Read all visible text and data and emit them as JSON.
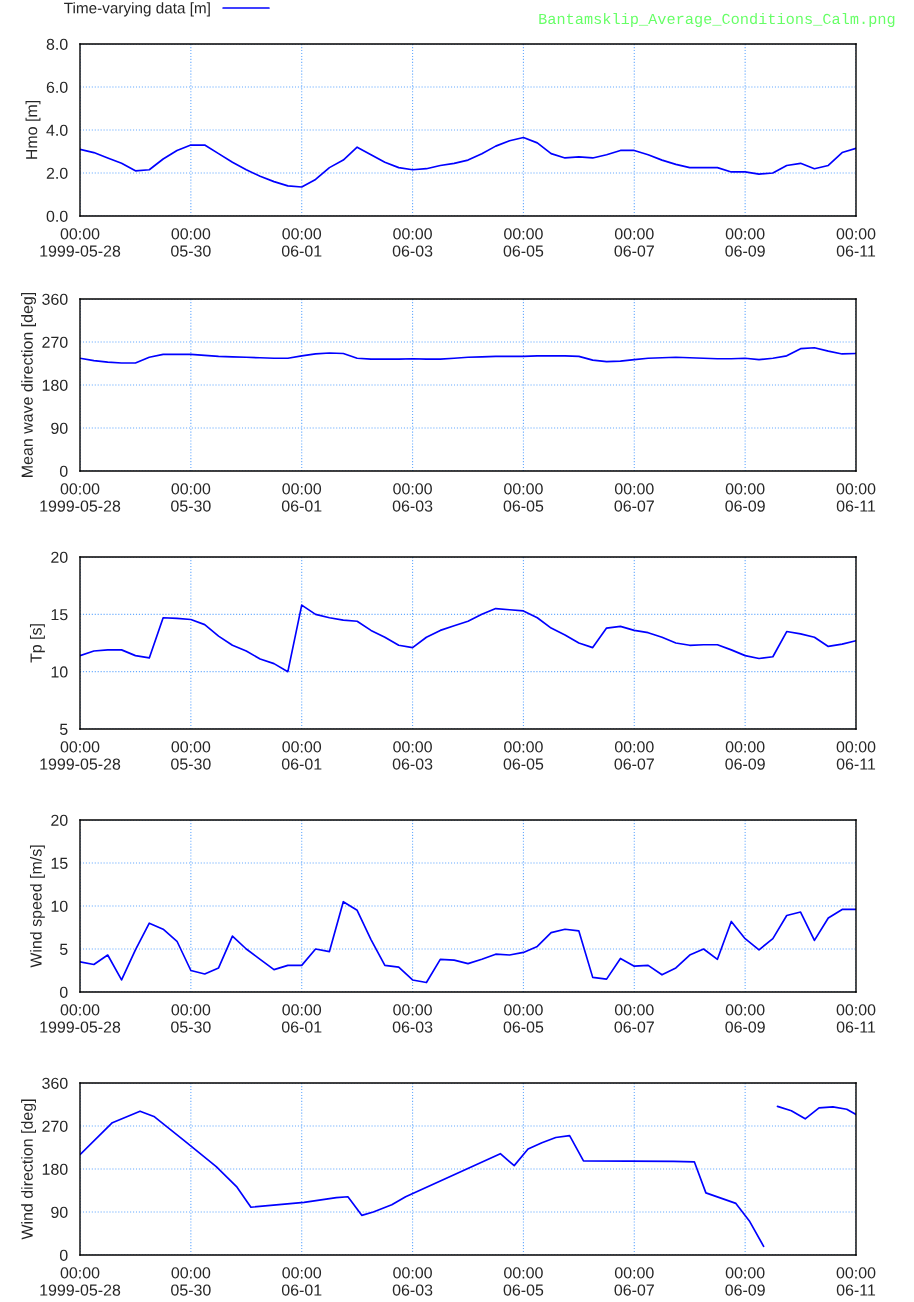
{
  "chart_data": [
    {
      "type": "line",
      "ylabel": "Hmo [m]",
      "annotations": [
        "Bantamsklip_Average_Conditions_Calm.png"
      ],
      "legend": "top left",
      "grid": true,
      "x": [
        "1999-05-28T00:00",
        "1999-05-28T06:00",
        "1999-05-28T12:00",
        "1999-05-28T18:00",
        "1999-05-29T00:00",
        "1999-05-29T06:00",
        "1999-05-29T12:00",
        "1999-05-29T18:00",
        "1999-05-30T00:00",
        "1999-05-30T06:00",
        "1999-05-30T12:00",
        "1999-05-30T18:00",
        "1999-05-31T00:00",
        "1999-05-31T06:00",
        "1999-05-31T12:00",
        "1999-05-31T18:00",
        "1999-06-01T00:00",
        "1999-06-01T06:00",
        "1999-06-01T12:00",
        "1999-06-01T18:00",
        "1999-06-02T00:00",
        "1999-06-02T06:00",
        "1999-06-02T12:00",
        "1999-06-02T18:00",
        "1999-06-03T00:00",
        "1999-06-03T06:00",
        "1999-06-03T12:00",
        "1999-06-03T18:00",
        "1999-06-04T00:00",
        "1999-06-04T06:00",
        "1999-06-04T12:00",
        "1999-06-04T18:00",
        "1999-06-05T00:00",
        "1999-06-05T06:00",
        "1999-06-05T12:00",
        "1999-06-05T18:00",
        "1999-06-06T00:00",
        "1999-06-06T06:00",
        "1999-06-06T12:00",
        "1999-06-06T18:00",
        "1999-06-07T00:00",
        "1999-06-07T06:00",
        "1999-06-07T12:00",
        "1999-06-07T18:00",
        "1999-06-08T00:00",
        "1999-06-08T06:00",
        "1999-06-08T12:00",
        "1999-06-08T18:00",
        "1999-06-09T00:00",
        "1999-06-09T06:00",
        "1999-06-09T12:00",
        "1999-06-09T18:00",
        "1999-06-10T00:00",
        "1999-06-10T06:00",
        "1999-06-10T12:00",
        "1999-06-10T18:00",
        "1999-06-11T00:00"
      ],
      "series": [
        {
          "name": "Time-varying data [m]",
          "color": "#0000ff",
          "values": [
            3.1,
            2.95,
            2.7,
            2.45,
            2.1,
            2.15,
            2.65,
            3.05,
            3.3,
            3.3,
            2.9,
            2.5,
            2.15,
            1.85,
            1.6,
            1.4,
            1.35,
            1.7,
            2.25,
            2.6,
            3.2,
            2.85,
            2.5,
            2.25,
            2.15,
            2.2,
            2.35,
            2.45,
            2.6,
            2.9,
            3.25,
            3.5,
            3.65,
            3.4,
            2.9,
            2.7,
            2.75,
            2.7,
            2.85,
            3.05,
            3.05,
            2.85,
            2.6,
            2.4,
            2.25,
            2.25,
            2.25,
            2.05,
            2.05,
            1.95,
            2.0,
            2.35,
            2.45,
            2.2,
            2.35,
            2.95,
            3.15
          ]
        }
      ],
      "xlim": [
        "1999-05-28",
        "1999-06-11"
      ],
      "xticks": [
        {
          "value": "1999-05-28",
          "label": "00:00\n1999-05-28"
        },
        {
          "value": "1999-05-30",
          "label": "00:00\n05-30"
        },
        {
          "value": "1999-06-01",
          "label": "00:00\n06-01"
        },
        {
          "value": "1999-06-03",
          "label": "00:00\n06-03"
        },
        {
          "value": "1999-06-05",
          "label": "00:00\n06-05"
        },
        {
          "value": "1999-06-07",
          "label": "00:00\n06-07"
        },
        {
          "value": "1999-06-09",
          "label": "00:00\n06-09"
        },
        {
          "value": "1999-06-11",
          "label": "00:00\n06-11"
        }
      ],
      "ylim": [
        0,
        8
      ],
      "yticks": [
        {
          "value": 0,
          "label": "0.0"
        },
        {
          "value": 2,
          "label": "2.0"
        },
        {
          "value": 4,
          "label": "4.0"
        },
        {
          "value": 6,
          "label": "6.0"
        },
        {
          "value": 8,
          "label": "8.0"
        }
      ]
    },
    {
      "type": "line",
      "ylabel": "Mean wave direction [deg]",
      "grid": true,
      "x": [
        "1999-05-28T00:00",
        "1999-05-28T06:00",
        "1999-05-28T12:00",
        "1999-05-28T18:00",
        "1999-05-29T00:00",
        "1999-05-29T06:00",
        "1999-05-29T12:00",
        "1999-05-29T18:00",
        "1999-05-30T00:00",
        "1999-05-30T06:00",
        "1999-05-30T12:00",
        "1999-05-30T18:00",
        "1999-05-31T00:00",
        "1999-05-31T06:00",
        "1999-05-31T12:00",
        "1999-05-31T18:00",
        "1999-06-01T00:00",
        "1999-06-01T06:00",
        "1999-06-01T12:00",
        "1999-06-01T18:00",
        "1999-06-02T00:00",
        "1999-06-02T06:00",
        "1999-06-02T12:00",
        "1999-06-02T18:00",
        "1999-06-03T00:00",
        "1999-06-03T06:00",
        "1999-06-03T12:00",
        "1999-06-03T18:00",
        "1999-06-04T00:00",
        "1999-06-04T06:00",
        "1999-06-04T12:00",
        "1999-06-04T18:00",
        "1999-06-05T00:00",
        "1999-06-05T06:00",
        "1999-06-05T12:00",
        "1999-06-05T18:00",
        "1999-06-06T00:00",
        "1999-06-06T06:00",
        "1999-06-06T12:00",
        "1999-06-06T18:00",
        "1999-06-07T00:00",
        "1999-06-07T06:00",
        "1999-06-07T12:00",
        "1999-06-07T18:00",
        "1999-06-08T00:00",
        "1999-06-08T06:00",
        "1999-06-08T12:00",
        "1999-06-08T18:00",
        "1999-06-09T00:00",
        "1999-06-09T06:00",
        "1999-06-09T12:00",
        "1999-06-09T18:00",
        "1999-06-10T00:00",
        "1999-06-10T06:00",
        "1999-06-10T12:00",
        "1999-06-10T18:00",
        "1999-06-11T00:00"
      ],
      "series": [
        {
          "color": "#0000ff",
          "values": [
            236,
            231,
            228,
            226,
            226,
            238,
            244,
            244,
            244,
            242,
            240,
            239,
            238,
            237,
            236,
            236,
            241,
            245,
            247,
            246,
            236,
            234,
            234,
            234,
            235,
            234,
            234,
            236,
            238,
            239,
            240,
            240,
            240,
            241,
            241,
            241,
            240,
            232,
            229,
            230,
            233,
            236,
            237,
            238,
            237,
            236,
            235,
            235,
            236,
            233,
            236,
            241,
            256,
            258,
            251,
            245,
            246
          ]
        }
      ],
      "xlim": [
        "1999-05-28",
        "1999-06-11"
      ],
      "xticks": [
        {
          "value": "1999-05-28",
          "label": "00:00\n1999-05-28"
        },
        {
          "value": "1999-05-30",
          "label": "00:00\n05-30"
        },
        {
          "value": "1999-06-01",
          "label": "00:00\n06-01"
        },
        {
          "value": "1999-06-03",
          "label": "00:00\n06-03"
        },
        {
          "value": "1999-06-05",
          "label": "00:00\n06-05"
        },
        {
          "value": "1999-06-07",
          "label": "00:00\n06-07"
        },
        {
          "value": "1999-06-09",
          "label": "00:00\n06-09"
        },
        {
          "value": "1999-06-11",
          "label": "00:00\n06-11"
        }
      ],
      "ylim": [
        0,
        360
      ],
      "yticks": [
        0,
        90,
        180,
        270,
        360
      ]
    },
    {
      "type": "line",
      "ylabel": "Tp [s]",
      "grid": true,
      "x": [
        "1999-05-28T00:00",
        "1999-05-28T06:00",
        "1999-05-28T12:00",
        "1999-05-28T18:00",
        "1999-05-29T00:00",
        "1999-05-29T06:00",
        "1999-05-29T12:00",
        "1999-05-29T18:00",
        "1999-05-30T00:00",
        "1999-05-30T06:00",
        "1999-05-30T12:00",
        "1999-05-30T18:00",
        "1999-05-31T00:00",
        "1999-05-31T06:00",
        "1999-05-31T12:00",
        "1999-05-31T18:00",
        "1999-06-01T00:00",
        "1999-06-01T06:00",
        "1999-06-01T12:00",
        "1999-06-01T18:00",
        "1999-06-02T00:00",
        "1999-06-02T06:00",
        "1999-06-02T12:00",
        "1999-06-02T18:00",
        "1999-06-03T00:00",
        "1999-06-03T06:00",
        "1999-06-03T12:00",
        "1999-06-03T18:00",
        "1999-06-04T00:00",
        "1999-06-04T06:00",
        "1999-06-04T12:00",
        "1999-06-04T18:00",
        "1999-06-05T00:00",
        "1999-06-05T06:00",
        "1999-06-05T12:00",
        "1999-06-05T18:00",
        "1999-06-06T00:00",
        "1999-06-06T06:00",
        "1999-06-06T12:00",
        "1999-06-06T18:00",
        "1999-06-07T00:00",
        "1999-06-07T06:00",
        "1999-06-07T12:00",
        "1999-06-07T18:00",
        "1999-06-08T00:00",
        "1999-06-08T06:00",
        "1999-06-08T12:00",
        "1999-06-08T18:00",
        "1999-06-09T00:00",
        "1999-06-09T06:00",
        "1999-06-09T12:00",
        "1999-06-09T18:00",
        "1999-06-10T00:00",
        "1999-06-10T06:00",
        "1999-06-10T12:00",
        "1999-06-10T18:00",
        "1999-06-11T00:00"
      ],
      "series": [
        {
          "color": "#0000ff",
          "values": [
            11.4,
            11.8,
            11.9,
            11.9,
            11.4,
            11.2,
            14.7,
            14.65,
            14.55,
            14.1,
            13.1,
            12.3,
            11.8,
            11.1,
            10.7,
            10.0,
            15.8,
            15.0,
            14.7,
            14.5,
            14.4,
            13.6,
            13.0,
            12.3,
            12.1,
            13.0,
            13.6,
            14.0,
            14.4,
            15.0,
            15.5,
            15.4,
            15.3,
            14.7,
            13.8,
            13.2,
            12.5,
            12.1,
            13.8,
            13.95,
            13.6,
            13.4,
            13.0,
            12.5,
            12.3,
            12.35,
            12.35,
            11.9,
            11.4,
            11.15,
            11.3,
            13.5,
            13.3,
            13.0,
            12.2,
            12.4,
            12.7
          ]
        }
      ],
      "xlim": [
        "1999-05-28",
        "1999-06-11"
      ],
      "xticks": [
        {
          "value": "1999-05-28",
          "label": "00:00\n1999-05-28"
        },
        {
          "value": "1999-05-30",
          "label": "00:00\n05-30"
        },
        {
          "value": "1999-06-01",
          "label": "00:00\n06-01"
        },
        {
          "value": "1999-06-03",
          "label": "00:00\n06-03"
        },
        {
          "value": "1999-06-05",
          "label": "00:00\n06-05"
        },
        {
          "value": "1999-06-07",
          "label": "00:00\n06-07"
        },
        {
          "value": "1999-06-09",
          "label": "00:00\n06-09"
        },
        {
          "value": "1999-06-11",
          "label": "00:00\n06-11"
        }
      ],
      "ylim": [
        5,
        20
      ],
      "yticks": [
        5,
        10,
        15,
        20
      ]
    },
    {
      "type": "line",
      "ylabel": "Wind speed [m/s]",
      "grid": true,
      "x": [
        "1999-05-28T00:00",
        "1999-05-28T06:00",
        "1999-05-28T12:00",
        "1999-05-28T18:00",
        "1999-05-29T00:00",
        "1999-05-29T06:00",
        "1999-05-29T12:00",
        "1999-05-29T18:00",
        "1999-05-30T00:00",
        "1999-05-30T06:00",
        "1999-05-30T12:00",
        "1999-05-30T18:00",
        "1999-05-31T00:00",
        "1999-05-31T06:00",
        "1999-05-31T12:00",
        "1999-05-31T18:00",
        "1999-06-01T00:00",
        "1999-06-01T06:00",
        "1999-06-01T12:00",
        "1999-06-01T18:00",
        "1999-06-02T00:00",
        "1999-06-02T06:00",
        "1999-06-02T12:00",
        "1999-06-02T18:00",
        "1999-06-03T00:00",
        "1999-06-03T06:00",
        "1999-06-03T12:00",
        "1999-06-03T18:00",
        "1999-06-04T00:00",
        "1999-06-04T06:00",
        "1999-06-04T12:00",
        "1999-06-04T18:00",
        "1999-06-05T00:00",
        "1999-06-05T06:00",
        "1999-06-05T12:00",
        "1999-06-05T18:00",
        "1999-06-06T00:00",
        "1999-06-06T06:00",
        "1999-06-06T12:00",
        "1999-06-06T18:00",
        "1999-06-07T00:00",
        "1999-06-07T06:00",
        "1999-06-07T12:00",
        "1999-06-07T18:00",
        "1999-06-08T00:00",
        "1999-06-08T06:00",
        "1999-06-08T12:00",
        "1999-06-08T18:00",
        "1999-06-09T00:00",
        "1999-06-09T06:00",
        "1999-06-09T12:00",
        "1999-06-09T18:00",
        "1999-06-10T00:00",
        "1999-06-10T06:00",
        "1999-06-10T12:00",
        "1999-06-10T18:00",
        "1999-06-11T00:00"
      ],
      "series": [
        {
          "color": "#0000ff",
          "values": [
            3.5,
            3.2,
            4.3,
            1.4,
            4.9,
            8.0,
            7.3,
            5.9,
            2.5,
            2.1,
            2.8,
            6.5,
            5.0,
            3.8,
            2.6,
            3.1,
            3.1,
            5.0,
            4.7,
            10.5,
            9.5,
            6.1,
            3.1,
            2.9,
            1.4,
            1.1,
            3.8,
            3.7,
            3.3,
            3.8,
            4.4,
            4.3,
            4.6,
            5.3,
            6.9,
            7.3,
            7.1,
            1.7,
            1.5,
            3.9,
            3.0,
            3.1,
            2.0,
            2.8,
            4.3,
            5.0,
            3.8,
            8.2,
            6.2,
            4.9,
            6.2,
            8.9,
            9.3,
            6.0,
            8.6,
            9.6,
            9.6
          ]
        }
      ],
      "xlim": [
        "1999-05-28",
        "1999-06-11"
      ],
      "xticks": [
        {
          "value": "1999-05-28",
          "label": "00:00\n1999-05-28"
        },
        {
          "value": "1999-05-30",
          "label": "00:00\n05-30"
        },
        {
          "value": "1999-06-01",
          "label": "00:00\n06-01"
        },
        {
          "value": "1999-06-03",
          "label": "00:00\n06-03"
        },
        {
          "value": "1999-06-05",
          "label": "00:00\n06-05"
        },
        {
          "value": "1999-06-07",
          "label": "00:00\n06-07"
        },
        {
          "value": "1999-06-09",
          "label": "00:00\n06-09"
        },
        {
          "value": "1999-06-11",
          "label": "00:00\n06-11"
        }
      ],
      "ylim": [
        0,
        20
      ],
      "yticks": [
        0,
        5,
        10,
        15,
        20
      ]
    },
    {
      "type": "line",
      "ylabel": "Wind direction [deg]",
      "grid": true,
      "x": [
        "1999-05-28T00:00",
        "1999-05-28T14:00",
        "1999-05-29T02:00",
        "1999-05-29T08:00",
        "1999-05-29T21:00",
        "1999-05-30T11:00",
        "1999-05-30T20:00",
        "1999-05-31T02:00",
        "1999-06-01T01:00",
        "1999-06-01T15:00",
        "1999-06-01T20:00",
        "1999-06-02T02:00",
        "1999-06-02T07:00",
        "1999-06-02T15:00",
        "1999-06-02T21:00",
        "1999-06-04T14:00",
        "1999-06-04T20:00",
        "1999-06-05T02:00",
        "1999-06-05T08:00",
        "1999-06-05T14:00",
        "1999-06-05T20:00",
        "1999-06-06T02:00",
        "1999-06-07T17:00",
        "1999-06-08T02:00",
        "1999-06-08T07:00",
        "1999-06-08T20:00",
        "1999-06-09T02:00",
        "1999-06-09T08:00",
        "1999-06-09T11:00",
        "1999-06-09T14:00",
        "1999-06-09T20:00",
        "1999-06-10T02:00",
        "1999-06-10T08:00",
        "1999-06-10T14:00",
        "1999-06-10T20:00",
        "1999-06-11T00:00"
      ],
      "series": [
        {
          "color": "#0000ff",
          "values": [
            210,
            277,
            301,
            290,
            240,
            185,
            142,
            100,
            110,
            120,
            122,
            83,
            90,
            105,
            122,
            212,
            187,
            222,
            235,
            246,
            250,
            197,
            196,
            195,
            130,
            108,
            70,
            18,
            null,
            311,
            302,
            285,
            308,
            310,
            305,
            294
          ]
        }
      ],
      "xlim": [
        "1999-05-28",
        "1999-06-11"
      ],
      "xticks": [
        {
          "value": "1999-05-28",
          "label": "00:00\n1999-05-28"
        },
        {
          "value": "1999-05-30",
          "label": "00:00\n05-30"
        },
        {
          "value": "1999-06-01",
          "label": "00:00\n06-01"
        },
        {
          "value": "1999-06-03",
          "label": "00:00\n06-03"
        },
        {
          "value": "1999-06-05",
          "label": "00:00\n06-05"
        },
        {
          "value": "1999-06-07",
          "label": "00:00\n06-07"
        },
        {
          "value": "1999-06-09",
          "label": "00:00\n06-09"
        },
        {
          "value": "1999-06-11",
          "label": "00:00\n06-11"
        }
      ],
      "ylim": [
        0,
        360
      ],
      "yticks": [
        0,
        90,
        180,
        270,
        360
      ]
    }
  ]
}
